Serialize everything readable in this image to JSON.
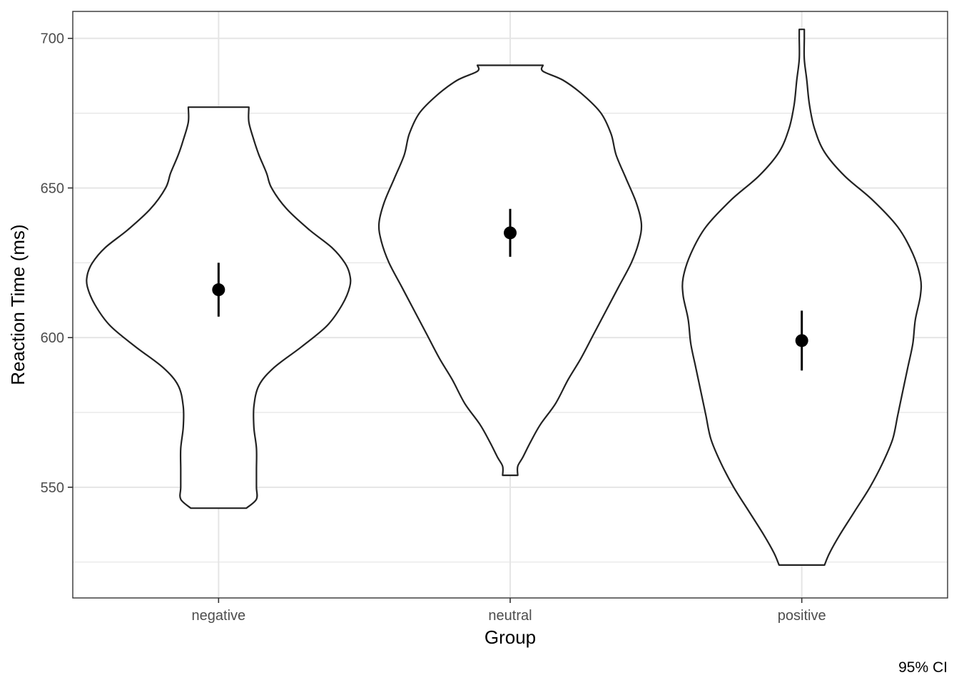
{
  "chart_data": {
    "type": "violin",
    "title": "",
    "xlabel": "Group",
    "ylabel": "Reaction Time (ms)",
    "caption": "95% CI",
    "categories": [
      "negative",
      "neutral",
      "positive"
    ],
    "ylim": [
      513,
      709
    ],
    "yticks": [
      550,
      600,
      650,
      700
    ],
    "grid": true,
    "legend": "none",
    "colors": {
      "outline": "#222222",
      "point": "#000000",
      "grid": "#e5e5e5",
      "panel_border": "#333333"
    },
    "groups": [
      {
        "name": "negative",
        "mean": 616,
        "ci": [
          607,
          625
        ],
        "range": [
          543,
          677
        ],
        "density": [
          [
            543,
            0.11
          ],
          [
            546,
            0.15
          ],
          [
            550,
            0.15
          ],
          [
            556,
            0.15
          ],
          [
            563,
            0.15
          ],
          [
            570,
            0.14
          ],
          [
            577,
            0.14
          ],
          [
            584,
            0.16
          ],
          [
            590,
            0.22
          ],
          [
            597,
            0.33
          ],
          [
            604,
            0.43
          ],
          [
            611,
            0.49
          ],
          [
            617,
            0.52
          ],
          [
            621,
            0.52
          ],
          [
            625,
            0.5
          ],
          [
            630,
            0.45
          ],
          [
            636,
            0.36
          ],
          [
            643,
            0.27
          ],
          [
            650,
            0.21
          ],
          [
            655,
            0.19
          ],
          [
            661,
            0.16
          ],
          [
            666,
            0.14
          ],
          [
            672,
            0.12
          ],
          [
            677,
            0.12
          ]
        ]
      },
      {
        "name": "neutral",
        "mean": 635,
        "ci": [
          627,
          643
        ],
        "range": [
          554,
          691
        ],
        "density": [
          [
            554,
            0.03
          ],
          [
            557,
            0.03
          ],
          [
            560,
            0.05
          ],
          [
            565,
            0.08
          ],
          [
            571,
            0.12
          ],
          [
            578,
            0.18
          ],
          [
            586,
            0.23
          ],
          [
            593,
            0.28
          ],
          [
            601,
            0.33
          ],
          [
            609,
            0.38
          ],
          [
            617,
            0.43
          ],
          [
            625,
            0.48
          ],
          [
            632,
            0.51
          ],
          [
            638,
            0.52
          ],
          [
            645,
            0.5
          ],
          [
            653,
            0.46
          ],
          [
            661,
            0.42
          ],
          [
            668,
            0.4
          ],
          [
            675,
            0.36
          ],
          [
            681,
            0.29
          ],
          [
            686,
            0.21
          ],
          [
            689,
            0.13
          ],
          [
            691,
            0.13
          ]
        ]
      },
      {
        "name": "positive",
        "mean": 599,
        "ci": [
          589,
          609
        ],
        "range": [
          524,
          703
        ],
        "density": [
          [
            524,
            0.09
          ],
          [
            528,
            0.11
          ],
          [
            534,
            0.15
          ],
          [
            542,
            0.21
          ],
          [
            550,
            0.27
          ],
          [
            558,
            0.32
          ],
          [
            566,
            0.36
          ],
          [
            574,
            0.38
          ],
          [
            582,
            0.4
          ],
          [
            590,
            0.42
          ],
          [
            598,
            0.44
          ],
          [
            606,
            0.45
          ],
          [
            614,
            0.47
          ],
          [
            620,
            0.47
          ],
          [
            628,
            0.44
          ],
          [
            637,
            0.38
          ],
          [
            646,
            0.28
          ],
          [
            654,
            0.17
          ],
          [
            662,
            0.09
          ],
          [
            670,
            0.05
          ],
          [
            678,
            0.03
          ],
          [
            686,
            0.02
          ],
          [
            693,
            0.01
          ],
          [
            700,
            0.01
          ],
          [
            703,
            0.01
          ]
        ]
      }
    ]
  }
}
